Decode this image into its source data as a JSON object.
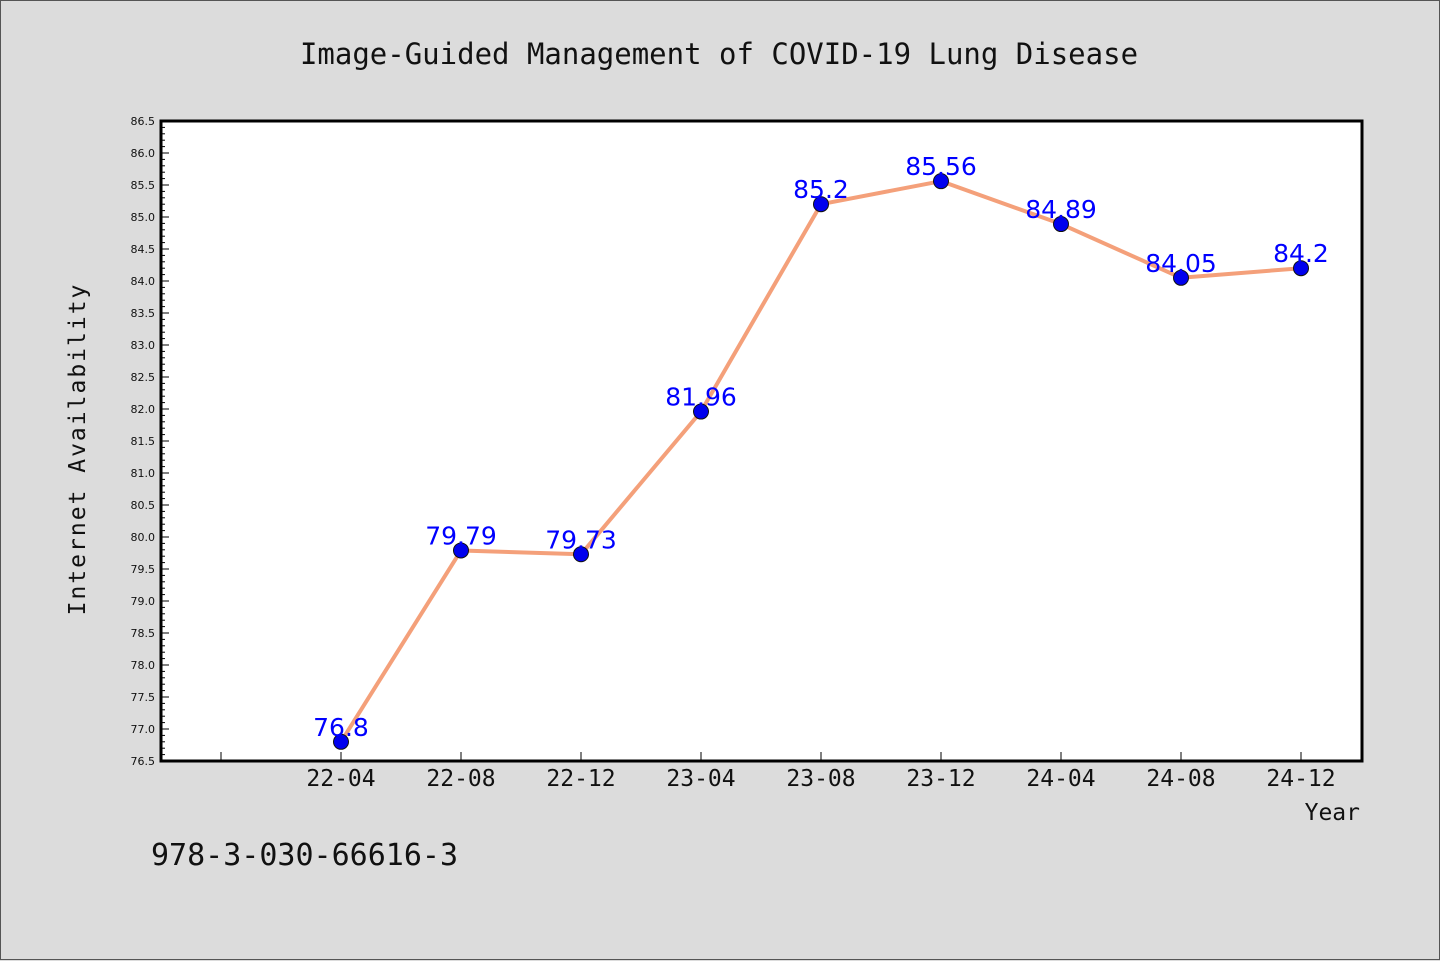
{
  "chart_data": {
    "type": "line",
    "title": "Image-Guided Management of COVID-19 Lung Disease",
    "xlabel": "Year",
    "ylabel": "Internet Availability",
    "categories": [
      "22-04",
      "22-08",
      "22-12",
      "23-04",
      "23-08",
      "23-12",
      "24-04",
      "24-08",
      "24-12"
    ],
    "series": [
      {
        "values": [
          76.8,
          79.79,
          79.73,
          81.96,
          85.2,
          85.56,
          84.89,
          84.05,
          84.2
        ],
        "data_labels": [
          "76.8",
          "79.79",
          "79.73",
          "81.96",
          "85.2",
          "85.56",
          "84.89",
          "84.05",
          "84.2"
        ]
      }
    ],
    "ylim": [
      76.5,
      86.5
    ],
    "yticks": [
      "76.5",
      "77.0",
      "77.5",
      "78.0",
      "78.5",
      "79.0",
      "79.5",
      "80.0",
      "80.5",
      "81.0",
      "81.5",
      "82.0",
      "82.5",
      "83.0",
      "83.5",
      "84.0",
      "84.5",
      "85.0",
      "85.5",
      "86.0",
      "86.5"
    ],
    "grid": false,
    "line_color": "#f4a07a",
    "marker_color": "#0000ee",
    "label_color": "#0000ff"
  },
  "footer": {
    "isbn": "978-3-030-66616-3"
  }
}
